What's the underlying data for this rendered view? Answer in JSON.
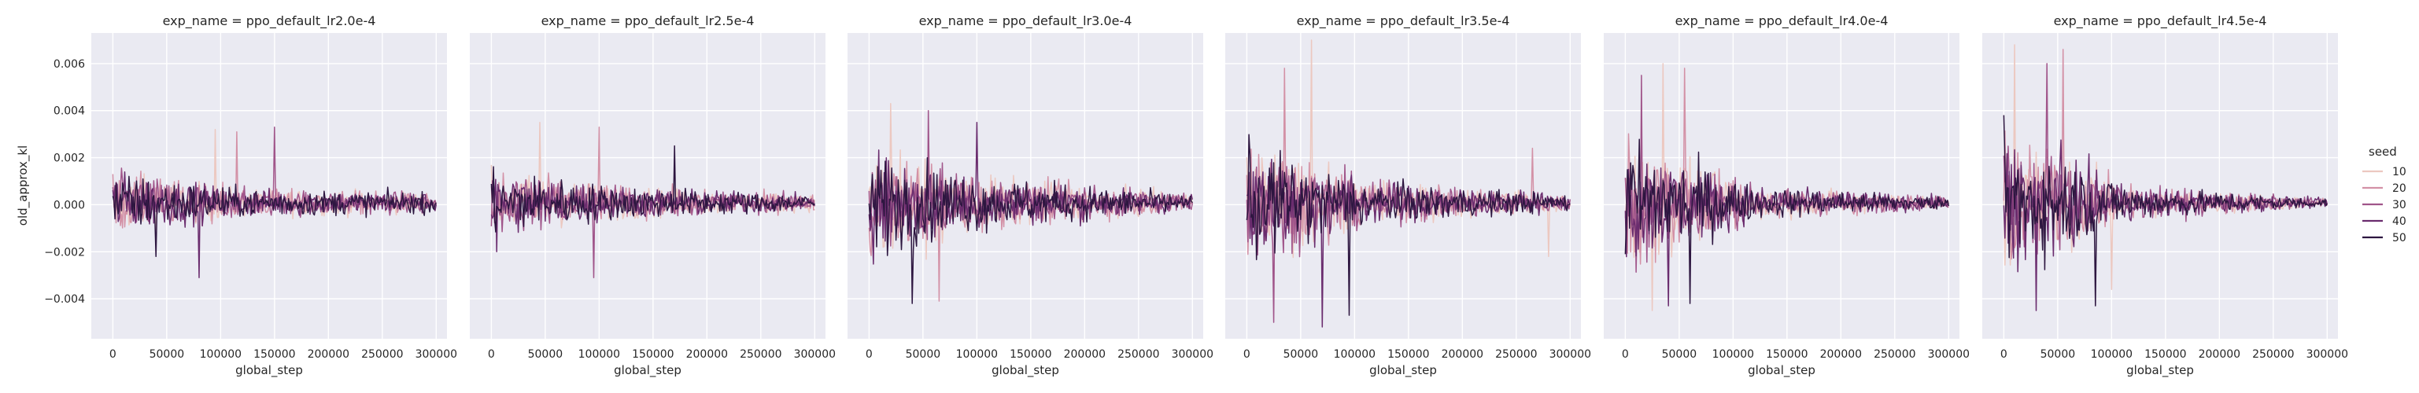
{
  "figure": {
    "ylabel": "old_approx_kl",
    "xlabel": "global_step",
    "legend_title": "seed",
    "legend_placement": "right"
  },
  "chart_data": {
    "type": "line",
    "facet_by": "exp_name",
    "x_label": "global_step",
    "y_label": "old_approx_kl",
    "xlim": [
      -20000,
      310000
    ],
    "ylim": [
      -0.0057,
      0.0073
    ],
    "x_ticks": [
      0,
      50000,
      100000,
      150000,
      200000,
      250000,
      300000
    ],
    "x_tick_labels": [
      "0",
      "50000",
      "100000",
      "150000",
      "200000",
      "250000",
      "300000"
    ],
    "y_ticks": [
      -0.004,
      -0.002,
      0.0,
      0.002,
      0.004,
      0.006
    ],
    "y_tick_labels": [
      "−0.004",
      "−0.002",
      "0.000",
      "0.002",
      "0.004",
      "0.006"
    ],
    "grid": true,
    "series_names": [
      "10",
      "20",
      "30",
      "40",
      "50"
    ],
    "series_colors": [
      "#ecc8c0",
      "#d391a6",
      "#a0558a",
      "#6a2c6e",
      "#2d1640"
    ],
    "panels": [
      {
        "title": "exp_name = ppo_default_lr2.0e-4",
        "amp": [
          0.0015,
          0.0007,
          0.0005
        ],
        "spikes": [
          [
            95000,
            0.0032
          ],
          [
            115000,
            0.0031
          ],
          [
            150000,
            0.0033
          ],
          [
            80000,
            -0.0031
          ],
          [
            40000,
            -0.0022
          ]
        ]
      },
      {
        "title": "exp_name = ppo_default_lr2.5e-4",
        "amp": [
          0.0016,
          0.0008,
          0.0004
        ],
        "spikes": [
          [
            45000,
            0.0035
          ],
          [
            100000,
            0.0033
          ],
          [
            95000,
            -0.0031
          ],
          [
            5000,
            -0.002
          ],
          [
            170000,
            0.0025
          ]
        ]
      },
      {
        "title": "exp_name = ppo_default_lr3.0e-4",
        "amp": [
          0.0025,
          0.0012,
          0.0004
        ],
        "spikes": [
          [
            20000,
            0.0043
          ],
          [
            65000,
            -0.0041
          ],
          [
            55000,
            0.004
          ],
          [
            100000,
            0.0035
          ],
          [
            40000,
            -0.0042
          ]
        ]
      },
      {
        "title": "exp_name = ppo_default_lr3.5e-4",
        "amp": [
          0.0028,
          0.001,
          0.0004
        ],
        "spikes": [
          [
            60000,
            0.007
          ],
          [
            35000,
            0.0058
          ],
          [
            25000,
            -0.005
          ],
          [
            70000,
            -0.0052
          ],
          [
            95000,
            -0.0047
          ],
          [
            280000,
            -0.0022
          ],
          [
            265000,
            0.0024
          ]
        ]
      },
      {
        "title": "exp_name = ppo_default_lr4.0e-4",
        "amp": [
          0.0032,
          0.0008,
          0.0003
        ],
        "spikes": [
          [
            35000,
            0.006
          ],
          [
            55000,
            0.0058
          ],
          [
            15000,
            0.0055
          ],
          [
            40000,
            -0.0043
          ],
          [
            60000,
            -0.0042
          ],
          [
            25000,
            -0.0045
          ]
        ]
      },
      {
        "title": "exp_name = ppo_default_lr4.5e-4",
        "amp": [
          0.0034,
          0.0008,
          0.0002
        ],
        "spikes": [
          [
            10000,
            0.0068
          ],
          [
            55000,
            0.0066
          ],
          [
            40000,
            0.006
          ],
          [
            30000,
            -0.0045
          ],
          [
            85000,
            -0.0043
          ],
          [
            100000,
            -0.0036
          ]
        ]
      }
    ]
  }
}
